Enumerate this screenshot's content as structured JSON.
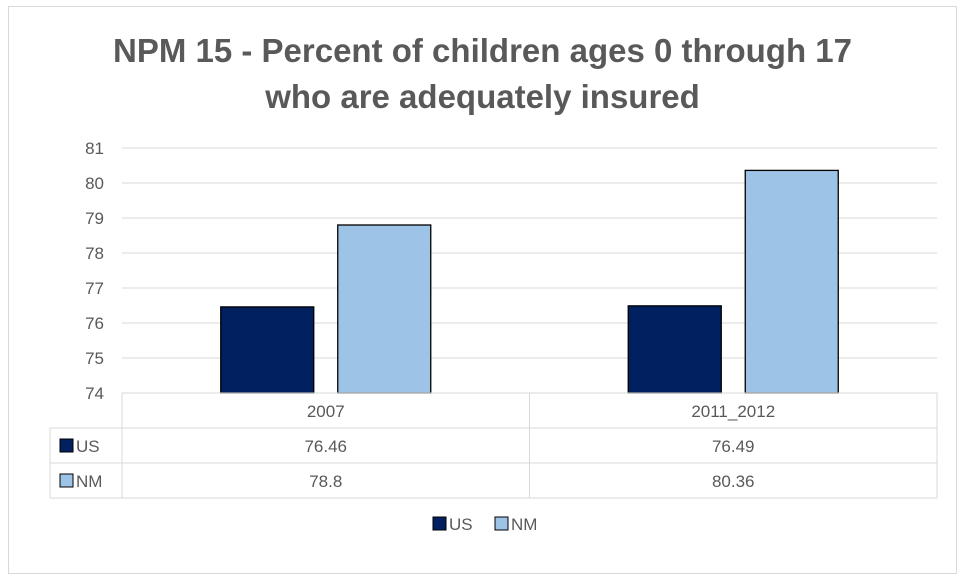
{
  "chart_data": {
    "type": "bar",
    "title_line1": "NPM 15 - Percent of children ages 0 through 17",
    "title_line2": "who are adequately insured",
    "categories": [
      "2007",
      "2011_2012"
    ],
    "series": [
      {
        "name": "US",
        "values": [
          76.46,
          76.49
        ],
        "color": "#002060",
        "value_labels": [
          "76.46",
          "76.49"
        ]
      },
      {
        "name": "NM",
        "values": [
          78.8,
          80.36
        ],
        "color": "#9dc3e6",
        "value_labels": [
          "78.8",
          "80.36"
        ]
      }
    ],
    "ylim": [
      74,
      81
    ],
    "yticks": [
      "74",
      "75",
      "76",
      "77",
      "78",
      "79",
      "80",
      "81"
    ],
    "grid": true,
    "legend_position": "bottom",
    "data_table": true
  }
}
